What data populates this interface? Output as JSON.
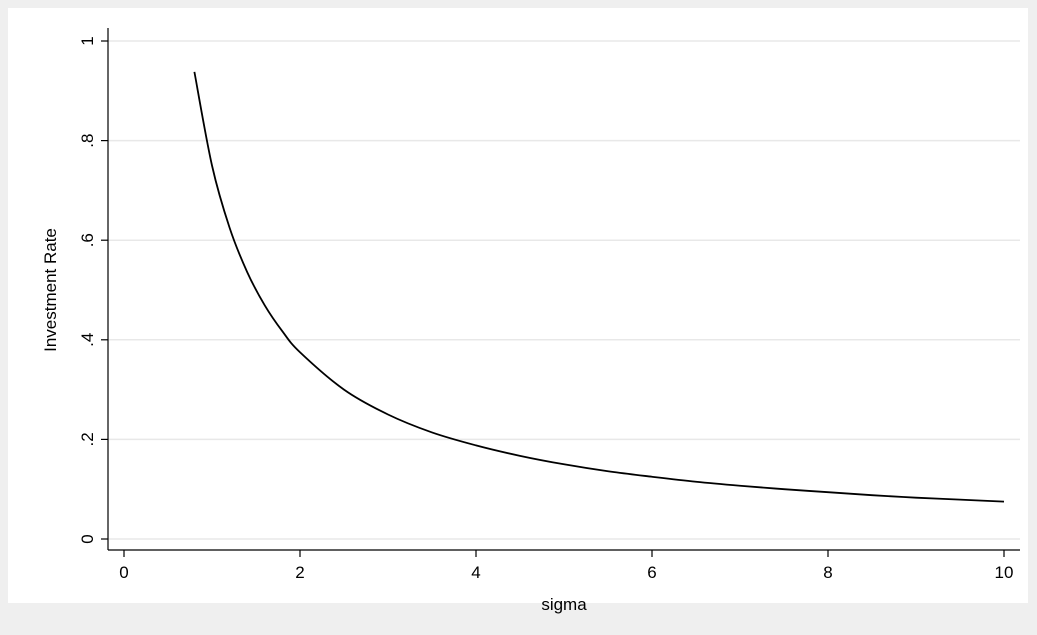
{
  "chart_data": {
    "type": "line",
    "xlabel": "sigma",
    "ylabel": "Investment Rate",
    "xlim": [
      0,
      10
    ],
    "ylim": [
      0,
      1
    ],
    "xticks": [
      0,
      2,
      4,
      6,
      8,
      10
    ],
    "xtick_labels": [
      "0",
      "2",
      "4",
      "6",
      "8",
      "10"
    ],
    "yticks": [
      0,
      0.2,
      0.4,
      0.6,
      0.8,
      1
    ],
    "ytick_labels": [
      "0",
      ".2",
      ".4",
      ".6",
      ".8",
      "1"
    ],
    "grid": "horizontal",
    "legend": "none",
    "series": [
      {
        "color": "#000000",
        "x": [
          0.8,
          1.0,
          1.2,
          1.4,
          1.6,
          1.8,
          2.0,
          2.5,
          3.0,
          3.5,
          4.0,
          4.5,
          5.0,
          5.5,
          6.0,
          6.5,
          7.0,
          7.5,
          8.0,
          8.5,
          9.0,
          9.5,
          10.0
        ],
        "y": [
          0.938,
          0.75,
          0.625,
          0.536,
          0.469,
          0.417,
          0.375,
          0.3,
          0.25,
          0.214,
          0.188,
          0.167,
          0.15,
          0.136,
          0.125,
          0.115,
          0.107,
          0.1,
          0.094,
          0.088,
          0.083,
          0.079,
          0.075
        ]
      }
    ]
  },
  "colors": {
    "outer_background": "#efefef",
    "plot_background": "#ffffff",
    "gridline": "#e8e8e8",
    "axis": "#000000",
    "line": "#000000"
  }
}
